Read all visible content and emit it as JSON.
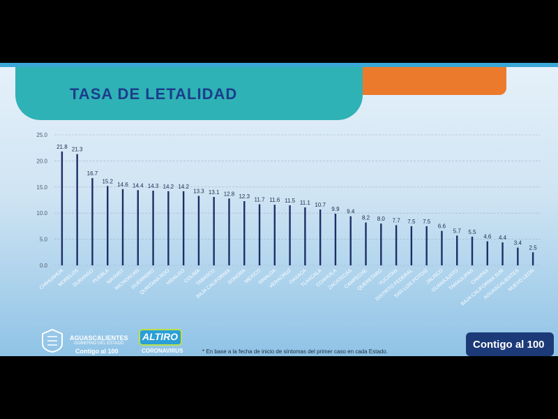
{
  "title": "TASA DE LETALIDAD",
  "chart_data": {
    "type": "bar",
    "categories": [
      "CHIHUAHUA",
      "MORELOS",
      "DURANGO",
      "PUEBLA",
      "NAYARIT",
      "MICHOACAN",
      "GUERRERO",
      "QUINTANA ROO",
      "HIDALGO",
      "COLIMA",
      "TABASCO",
      "BAJA CALIFORNIA",
      "SONORA",
      "MEXICO",
      "SINALOA",
      "VERACRUZ",
      "OAXACA",
      "TLAXCALA",
      "COAHUILA",
      "ZACATECAS",
      "CAMPECHE",
      "QUERETARO",
      "YUCATAN",
      "DISTRITO FEDERAL",
      "SAN LUIS POTOSI",
      "JALISCO",
      "GUANAJUATO",
      "TAMAULIPAS",
      "CHIAPAS",
      "BAJA CALIFORNIA SUR",
      "AGUASCALIENTES",
      "NUEVO LEON"
    ],
    "values": [
      21.8,
      21.3,
      16.7,
      15.2,
      14.6,
      14.4,
      14.3,
      14.2,
      14.2,
      13.3,
      13.1,
      12.8,
      12.3,
      11.7,
      11.6,
      11.5,
      11.1,
      10.7,
      9.9,
      9.4,
      8.2,
      8.0,
      7.7,
      7.5,
      7.5,
      6.6,
      5.7,
      5.5,
      4.6,
      4.4,
      3.4,
      2.5
    ],
    "value_labels": [
      "21.8",
      "21.3",
      "16.7",
      "15.2",
      "14.6",
      "14.4",
      "14.3",
      "14.2",
      "14.2",
      "13.3",
      "13.1",
      "12.8",
      "12.3",
      "11.7",
      "11.6",
      "11.5",
      "11.1",
      "10.7",
      "9.9",
      "9.4",
      "8.2",
      "8.0",
      "7.7",
      "7.5",
      "7.5",
      "6.6",
      "5.7",
      "5.5",
      "4.6",
      "4.4",
      "3.4",
      "2.5"
    ],
    "yticks": [
      "0.0",
      "5.0",
      "10.0",
      "15.0",
      "20.0",
      "25.0"
    ],
    "ylim": [
      0,
      25
    ],
    "grid": true,
    "bar_color": "#1c2f66"
  },
  "footer": {
    "state_name": "AGUASCALIENTES",
    "state_sub": "GOBIERNO DEL ESTADO",
    "state_slogan": "Contigo al 100",
    "altiro_main": "ALTIRO",
    "altiro_sub": "CORONAVIRUS",
    "footnote": "* En base a la fecha de inicio de síntomas del primer caso en cada Estado.",
    "contigo": "Contigo al 100"
  }
}
